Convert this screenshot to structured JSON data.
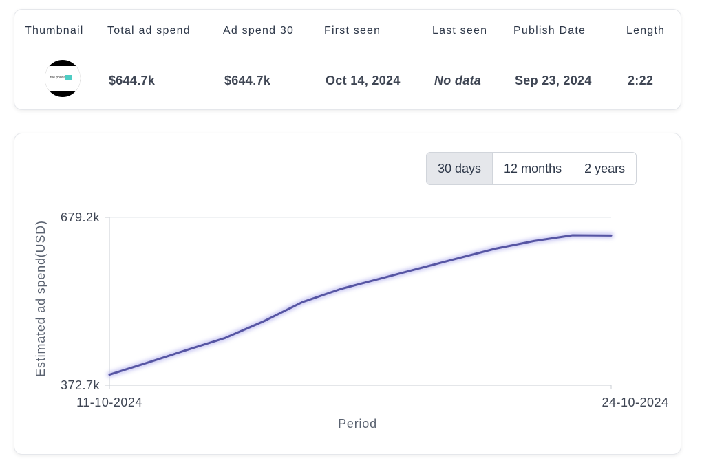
{
  "table": {
    "headers": {
      "thumbnail": "Thumbnail",
      "total_ad_spend": "Total ad spend",
      "ad_spend_30": "Ad spend 30",
      "first_seen": "First seen",
      "last_seen": "Last seen",
      "publish_date": "Publish Date",
      "length": "Length"
    },
    "row": {
      "thumbnail_text": "the podcast",
      "total_ad_spend": "$644.7k",
      "ad_spend_30": "$644.7k",
      "first_seen": "Oct 14, 2024",
      "last_seen": "No data",
      "publish_date": "Sep 23, 2024",
      "length": "2:22"
    }
  },
  "range_selector": {
    "options": [
      "30 days",
      "12 months",
      "2 years"
    ],
    "active": "30 days"
  },
  "colors": {
    "line": "#5655a3",
    "glow": "#c5c3f2",
    "grid": "#e2e4e8",
    "axis": "#c9cdd3"
  },
  "chart_data": {
    "type": "line",
    "xlabel": "Period",
    "ylabel": "Estimated ad spend(USD)",
    "x_tick_labels": [
      "11-10-2024",
      "24-10-2024"
    ],
    "y_tick_labels": [
      "372.7k",
      "679.2k"
    ],
    "ylim": [
      372.7,
      679.2
    ],
    "y_unit": "k USD",
    "grid": true,
    "series": [
      {
        "x": [
          "11-10-2024",
          "12-10-2024",
          "13-10-2024",
          "14-10-2024",
          "15-10-2024",
          "16-10-2024",
          "17-10-2024",
          "18-10-2024",
          "19-10-2024",
          "20-10-2024",
          "21-10-2024",
          "22-10-2024",
          "23-10-2024",
          "24-10-2024"
        ],
        "values": [
          392.0,
          414.3,
          437.0,
          459.0,
          489.5,
          524.5,
          548.5,
          567.0,
          585.5,
          604.0,
          622.0,
          636.0,
          646.6,
          646.0
        ]
      }
    ]
  }
}
